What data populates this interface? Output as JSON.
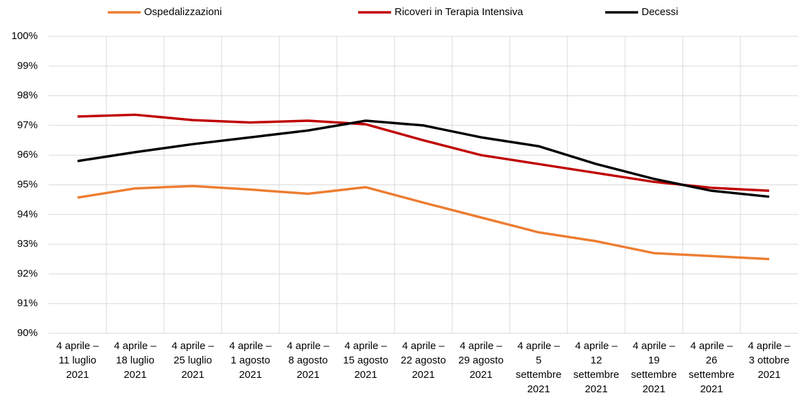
{
  "chart_data": {
    "type": "line",
    "categories": [
      "4 aprile –\n11 luglio\n2021",
      "4 aprile –\n18 luglio\n2021",
      "4 aprile –\n25 luglio\n2021",
      "4 aprile –\n1 agosto\n2021",
      "4 aprile –\n8 agosto\n2021",
      "4 aprile –\n15 agosto\n2021",
      "4 aprile –\n22 agosto\n2021",
      "4 aprile –\n29 agosto\n2021",
      "4 aprile –\n5\nsettembre\n2021",
      "4 aprile –\n12\nsettembre\n2021",
      "4 aprile –\n19\nsettembre\n2021",
      "4 aprile –\n26\nsettembre\n2021",
      "4 aprile –\n3 ottobre\n2021"
    ],
    "series": [
      {
        "name": "Ospedalizzazioni",
        "color": "#ed7d31",
        "values": [
          94.57,
          94.88,
          94.96,
          94.84,
          94.7,
          94.92,
          94.4,
          93.9,
          93.4,
          93.1,
          92.7,
          92.6,
          92.5
        ]
      },
      {
        "name": "Ricoveri in Terapia Intensiva",
        "color": "#c00000",
        "values": [
          97.3,
          97.36,
          97.18,
          97.1,
          97.16,
          97.04,
          96.5,
          96.0,
          95.7,
          95.4,
          95.1,
          94.9,
          94.8
        ]
      },
      {
        "name": "Decessi",
        "color": "#000000",
        "values": [
          95.8,
          96.1,
          96.37,
          96.6,
          96.83,
          97.16,
          97.0,
          96.6,
          96.3,
          95.7,
          95.2,
          94.8,
          94.6
        ]
      }
    ],
    "ylim": [
      90,
      100
    ],
    "yticks": [
      {
        "value": 90,
        "label": "90%"
      },
      {
        "value": 91,
        "label": "91%"
      },
      {
        "value": 92,
        "label": "92%"
      },
      {
        "value": 93,
        "label": "93%"
      },
      {
        "value": 94,
        "label": "94%"
      },
      {
        "value": 95,
        "label": "95%"
      },
      {
        "value": 96,
        "label": "96%"
      },
      {
        "value": 97,
        "label": "97%"
      },
      {
        "value": 98,
        "label": "98%"
      },
      {
        "value": 99,
        "label": "99%"
      },
      {
        "value": 100,
        "label": "100%"
      }
    ],
    "grid": true,
    "legend": "top"
  }
}
